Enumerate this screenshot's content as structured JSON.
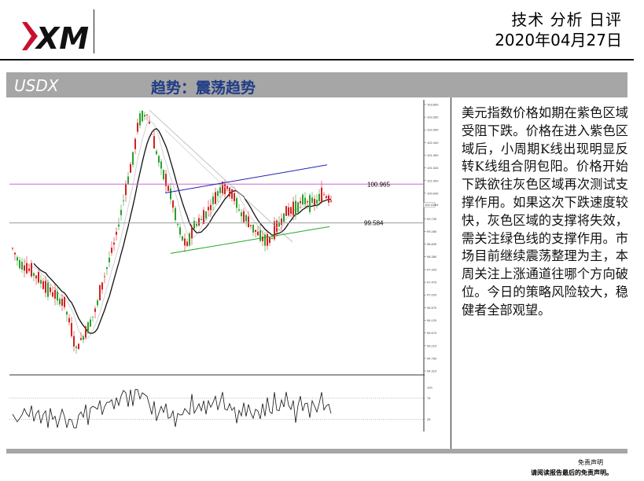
{
  "header": {
    "logo_text": "XM",
    "report_type": "技术 分析 日评",
    "date": "2020年04月27日"
  },
  "band": {
    "symbol": "USDX",
    "trend": "趋势：震荡趋势"
  },
  "analysis_text": "美元指数价格如期在紫色区域受阻下跌。价格在进入紫色区域后，小周期K线出现明显反转K线组合阴包阳。价格开始下跌欲往灰色区域再次测试支撑作用。如果这次下跌速度较快，灰色区域的支撑将失效，需关注绿色线的支撑作用。市场目前继续震荡整理为主，本周关注上涨通道往哪个方向破位。今日的策略风险较大，稳健者全部观望。",
  "footer": {
    "line1": "免责声明",
    "line2": "请阅读报告最后的免责声明。"
  },
  "chart_data": {
    "type": "candlestick",
    "levels": [
      {
        "label": "100.965",
        "value": 100.965,
        "color": "#cc66cc"
      },
      {
        "label": "99.584",
        "value": 99.584,
        "color": "#9a9a9a"
      }
    ],
    "trendlines": [
      {
        "name": "upper-channel",
        "color": "#2020b0"
      },
      {
        "name": "lower-channel",
        "color": "#22aa22"
      }
    ],
    "price_axis_ticks": [
      "103.800",
      "103.350",
      "102.900",
      "102.440",
      "101.990",
      "101.540",
      "101.090",
      "100.640",
      "100.224",
      "99.730",
      "99.280",
      "98.830",
      "98.380",
      "97.920",
      "97.470",
      "97.020",
      "96.570",
      "96.120",
      "95.670",
      "95.210",
      "94.760",
      "94.310"
    ],
    "last_price_label": "100.224",
    "oscillator_ticks": [
      "100",
      "75",
      "25"
    ],
    "up_color": "#d42020",
    "down_color": "#2aa02a"
  }
}
